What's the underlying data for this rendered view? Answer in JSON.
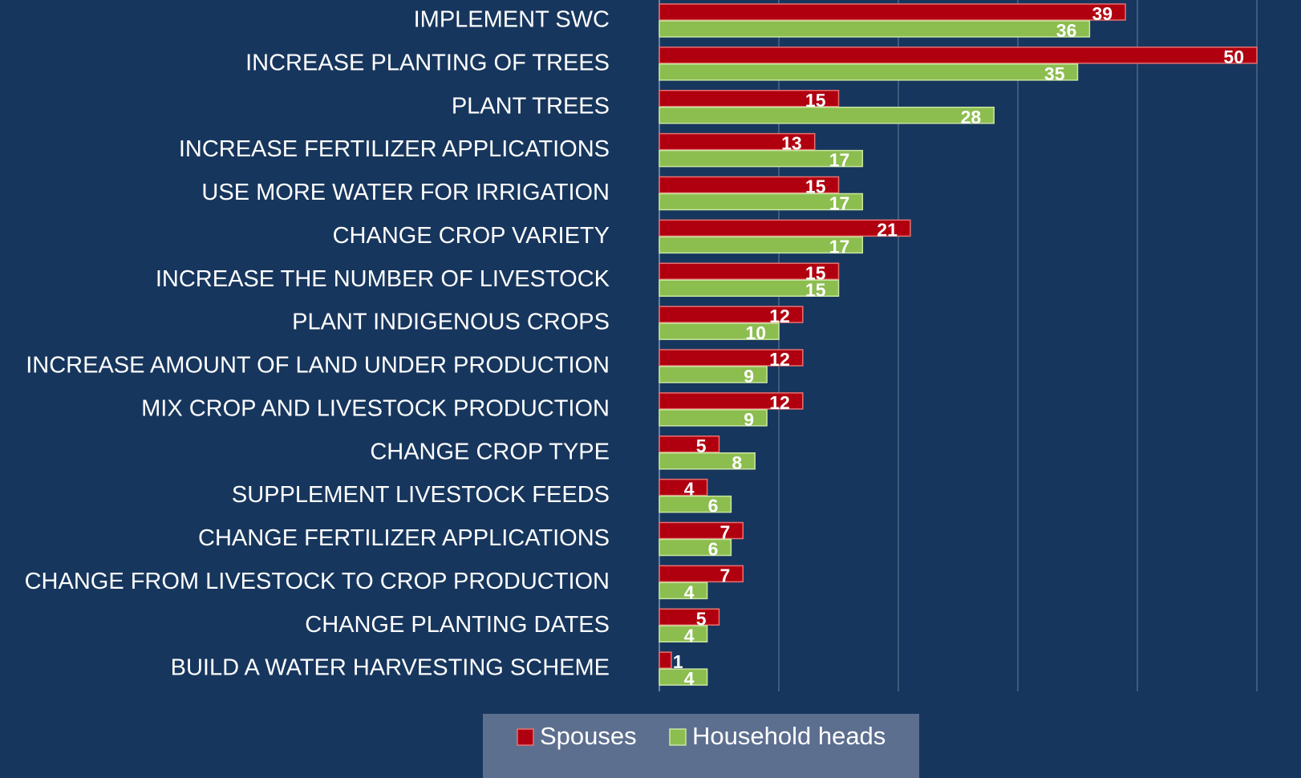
{
  "chart_data": {
    "type": "bar",
    "orientation": "horizontal",
    "categories": [
      "IMPLEMENT SWC",
      "INCREASE PLANTING OF TREES",
      "PLANT TREES",
      "INCREASE FERTILIZER APPLICATIONS",
      "USE MORE WATER FOR IRRIGATION",
      "CHANGE CROP VARIETY",
      "INCREASE THE NUMBER OF LIVESTOCK",
      "PLANT INDIGENOUS CROPS",
      "INCREASE AMOUNT OF LAND UNDER PRODUCTION",
      "MIX CROP AND LIVESTOCK PRODUCTION",
      "CHANGE CROP TYPE",
      "SUPPLEMENT LIVESTOCK FEEDS",
      "CHANGE FERTILIZER APPLICATIONS",
      "CHANGE FROM LIVESTOCK TO CROP PRODUCTION",
      "CHANGE PLANTING DATES",
      "BUILD A WATER HARVESTING SCHEME"
    ],
    "series": [
      {
        "name": "Spouses",
        "color": "#b0000f",
        "values": [
          39,
          50,
          15,
          13,
          15,
          21,
          15,
          12,
          12,
          12,
          5,
          4,
          7,
          7,
          5,
          1
        ]
      },
      {
        "name": "Household heads",
        "color": "#8cbd4f",
        "values": [
          36,
          35,
          28,
          17,
          17,
          17,
          15,
          10,
          9,
          9,
          8,
          6,
          6,
          4,
          4,
          4
        ]
      }
    ],
    "xlim": [
      0,
      50
    ],
    "xticks": [
      0,
      10,
      20,
      30,
      40,
      50
    ],
    "grid": true,
    "legend": "bottom"
  }
}
